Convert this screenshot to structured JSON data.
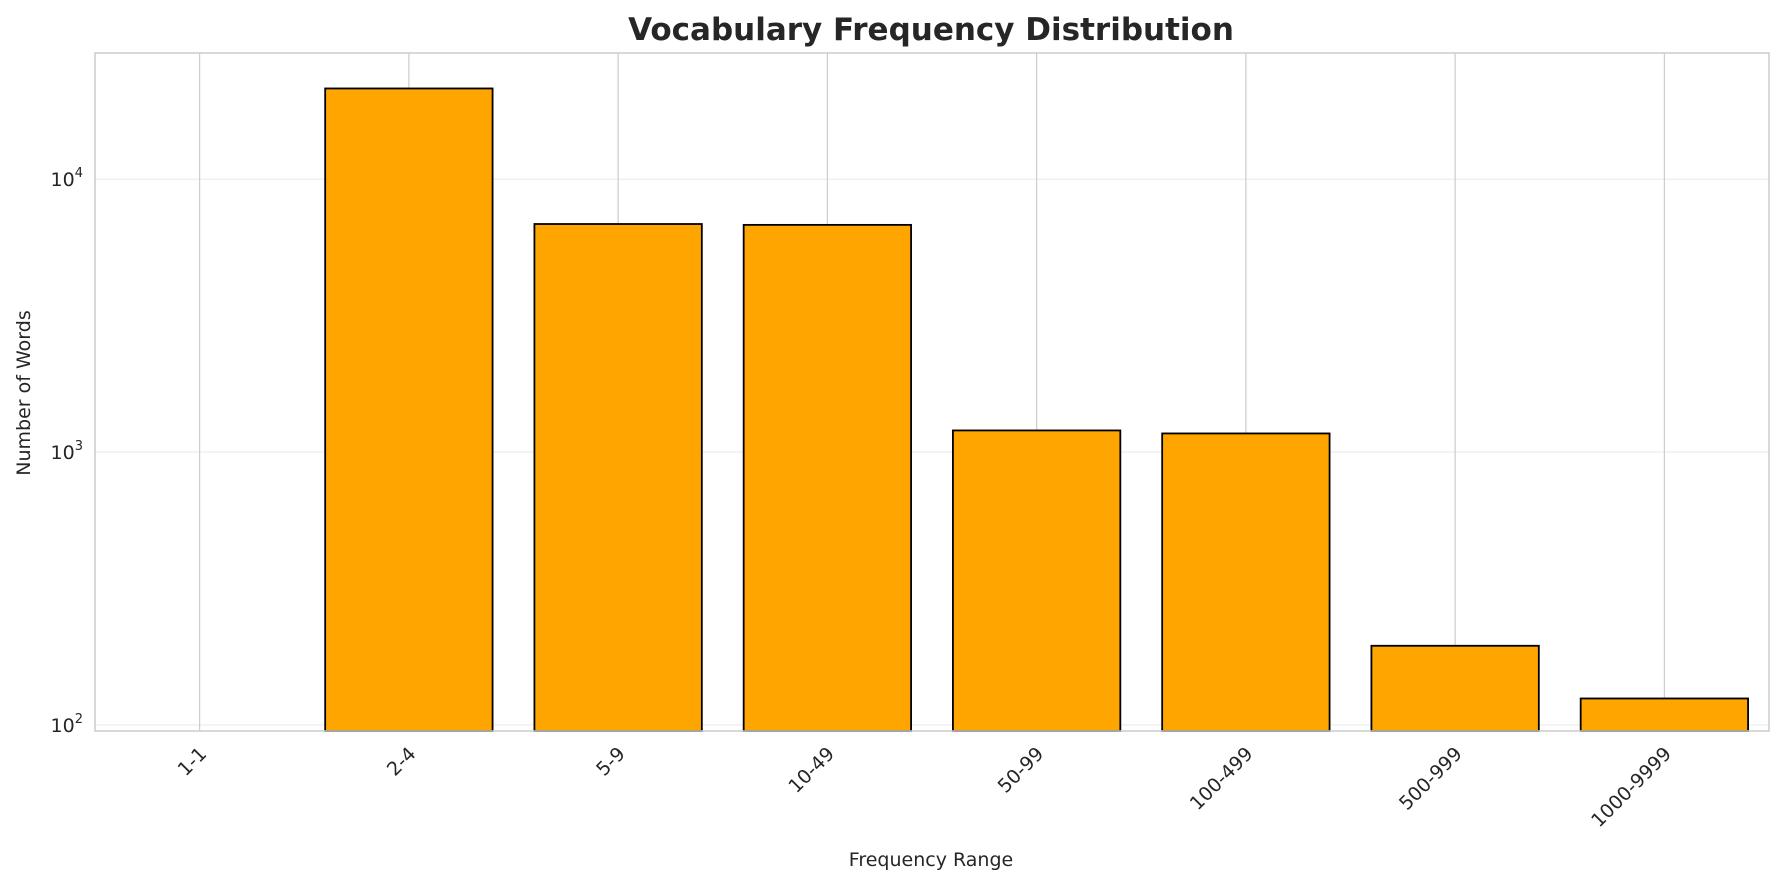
{
  "chart_data": {
    "type": "bar",
    "title": "Vocabulary Frequency Distribution",
    "xlabel": "Frequency Range",
    "ylabel": "Number of Words",
    "y_scale": "log",
    "ylim": [
      95,
      29000
    ],
    "y_ticks": [
      {
        "value": 100,
        "base": "10",
        "exp": "2"
      },
      {
        "value": 1000,
        "base": "10",
        "exp": "3"
      },
      {
        "value": 10000,
        "base": "10",
        "exp": "4"
      }
    ],
    "categories": [
      "1-1",
      "2-4",
      "5-9",
      "10-49",
      "50-99",
      "100-499",
      "500-999",
      "1000-9999"
    ],
    "values": [
      0,
      21500,
      6850,
      6800,
      1200,
      1170,
      195,
      125
    ],
    "bar_color": "#ffa500",
    "bar_edge_color": "#000000",
    "grid": true,
    "legend": "none"
  }
}
